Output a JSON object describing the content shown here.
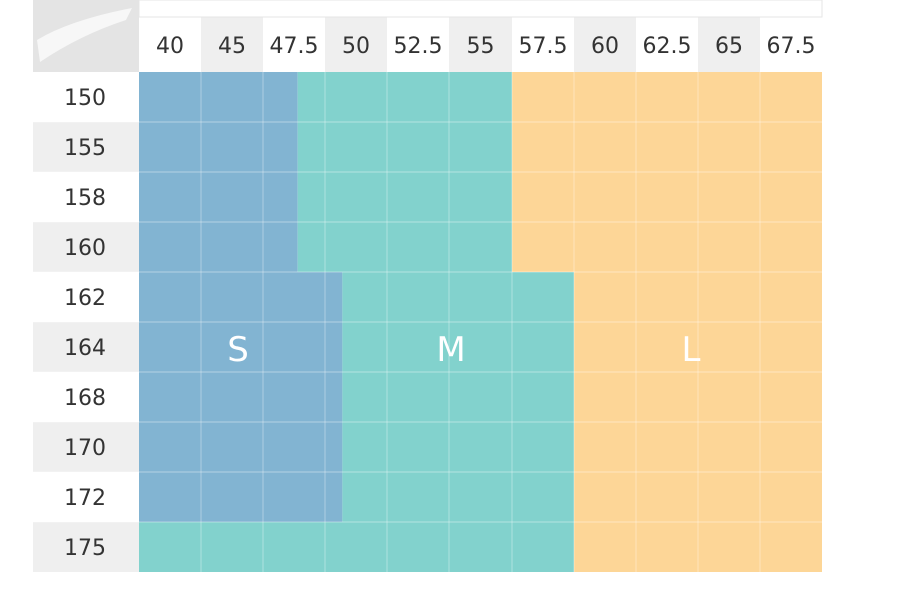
{
  "chart_data": {
    "type": "heatmap",
    "title": "",
    "xlabel": "",
    "ylabel": "",
    "x": [
      "40",
      "45",
      "47.5",
      "50",
      "52.5",
      "55",
      "57.5",
      "60",
      "62.5",
      "65",
      "67.5"
    ],
    "y": [
      "150",
      "155",
      "158",
      "160",
      "162",
      "164",
      "168",
      "170",
      "172",
      "175"
    ],
    "sizes": [
      {
        "name": "S",
        "color": "#82b4d2"
      },
      {
        "name": "M",
        "color": "#82d2cd"
      },
      {
        "name": "L",
        "color": "#fdd697"
      }
    ],
    "size_labels": [
      "S",
      "M",
      "L"
    ],
    "boundaries": [
      {
        "height_rows": [
          "150",
          "155",
          "158",
          "160"
        ],
        "s_max_weight": 48.9,
        "m_max_weight": 57.5
      },
      {
        "height_rows": [
          "162",
          "164",
          "168",
          "170",
          "172"
        ],
        "s_max_weight": 50.7,
        "m_max_weight": 60
      },
      {
        "height_rows": [
          "175"
        ],
        "s_max_weight": null,
        "m_max_weight": 60
      }
    ],
    "colors": {
      "header_bg": "#efefef",
      "grid_line": "#ffffff",
      "label_text": "#333333"
    }
  }
}
